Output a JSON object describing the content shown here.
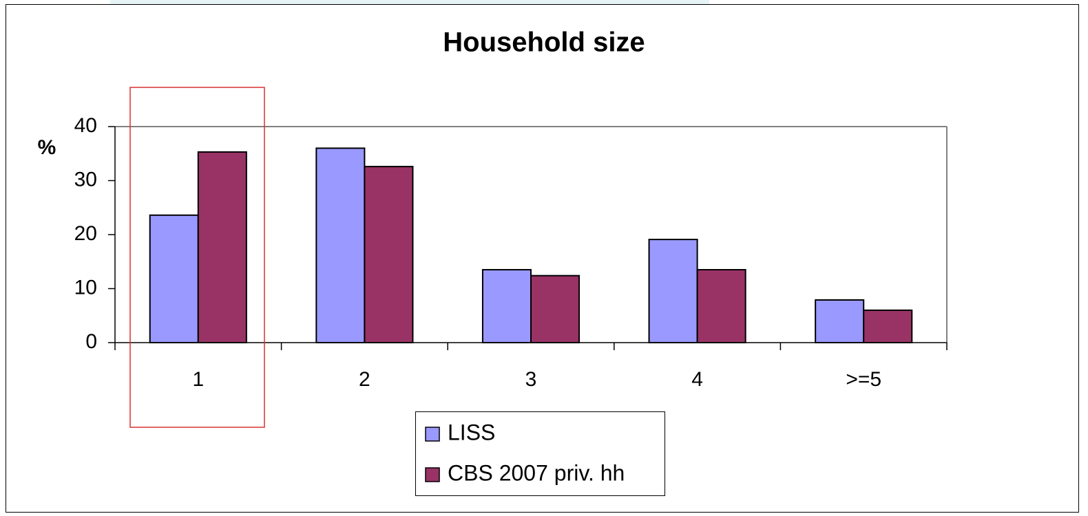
{
  "chart_data": {
    "type": "bar",
    "title": "Household size",
    "y_label": "%",
    "categories": [
      "1",
      "2",
      "3",
      "4",
      ">=5"
    ],
    "series": [
      {
        "name": "LISS",
        "color": "#9999ff",
        "values": [
          23.6,
          36.0,
          13.5,
          19.1,
          7.9
        ]
      },
      {
        "name": "CBS 2007 priv. hh",
        "color": "#993366",
        "values": [
          35.3,
          32.6,
          12.4,
          13.5,
          6.0
        ]
      }
    ],
    "ylim": [
      0,
      40
    ],
    "yticks": [
      0,
      10,
      20,
      30,
      40
    ],
    "grid": false
  }
}
